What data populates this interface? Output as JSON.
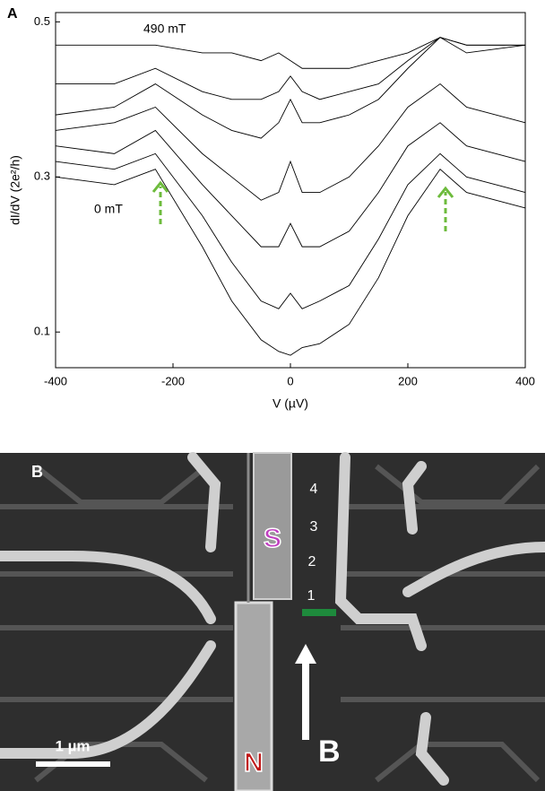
{
  "chart_data": {
    "type": "line",
    "panel_label": "A",
    "xlabel": "V (µV)",
    "ylabel": "dI/dV (2e²/h)",
    "annotations": [
      "490 mT",
      "0 mT"
    ],
    "x": [
      -400,
      -300,
      -230,
      -150,
      -100,
      -50,
      -20,
      0,
      20,
      50,
      100,
      150,
      200,
      255,
      300,
      400
    ],
    "series": [
      {
        "color": "#000000",
        "values": [
          0.3,
          0.29,
          0.31,
          0.21,
          0.14,
          0.09,
          0.075,
          0.07,
          0.08,
          0.085,
          0.11,
          0.17,
          0.25,
          0.31,
          0.28,
          0.26
        ]
      },
      {
        "color": "#000000",
        "values": [
          0.32,
          0.31,
          0.33,
          0.25,
          0.19,
          0.14,
          0.13,
          0.15,
          0.13,
          0.14,
          0.16,
          0.22,
          0.29,
          0.33,
          0.3,
          0.28
        ]
      },
      {
        "color": "#000000",
        "values": [
          0.34,
          0.33,
          0.36,
          0.29,
          0.25,
          0.21,
          0.21,
          0.24,
          0.21,
          0.21,
          0.23,
          0.28,
          0.34,
          0.37,
          0.34,
          0.32
        ]
      },
      {
        "color": "#000000",
        "values": [
          0.36,
          0.37,
          0.39,
          0.33,
          0.3,
          0.27,
          0.28,
          0.32,
          0.28,
          0.28,
          0.3,
          0.34,
          0.39,
          0.42,
          0.39,
          0.37
        ]
      },
      {
        "color": "#000000",
        "values": [
          0.38,
          0.39,
          0.42,
          0.38,
          0.36,
          0.35,
          0.37,
          0.4,
          0.37,
          0.37,
          0.38,
          0.4,
          0.44,
          0.48,
          0.46,
          0.47
        ]
      },
      {
        "color": "#000000",
        "values": [
          0.42,
          0.42,
          0.44,
          0.41,
          0.4,
          0.4,
          0.41,
          0.43,
          0.41,
          0.4,
          0.41,
          0.42,
          0.45,
          0.48,
          0.47,
          0.47
        ]
      },
      {
        "color": "#000000",
        "values": [
          0.47,
          0.47,
          0.47,
          0.46,
          0.46,
          0.45,
          0.46,
          0.45,
          0.44,
          0.44,
          0.44,
          0.45,
          0.46,
          0.48,
          0.47,
          0.47
        ]
      }
    ],
    "xlim": [
      -400,
      400
    ],
    "xticks": [
      -400,
      -200,
      0,
      200,
      400
    ],
    "ylim": [
      0.054,
      0.512
    ],
    "yticks": [
      0.1,
      0.3,
      0.5
    ]
  },
  "image": {
    "panel_label": "B",
    "numbers": [
      "4",
      "3",
      "2",
      "1"
    ],
    "s_label": "S",
    "n_label": "N",
    "field_label": "B",
    "scale_label": "1 µm"
  }
}
